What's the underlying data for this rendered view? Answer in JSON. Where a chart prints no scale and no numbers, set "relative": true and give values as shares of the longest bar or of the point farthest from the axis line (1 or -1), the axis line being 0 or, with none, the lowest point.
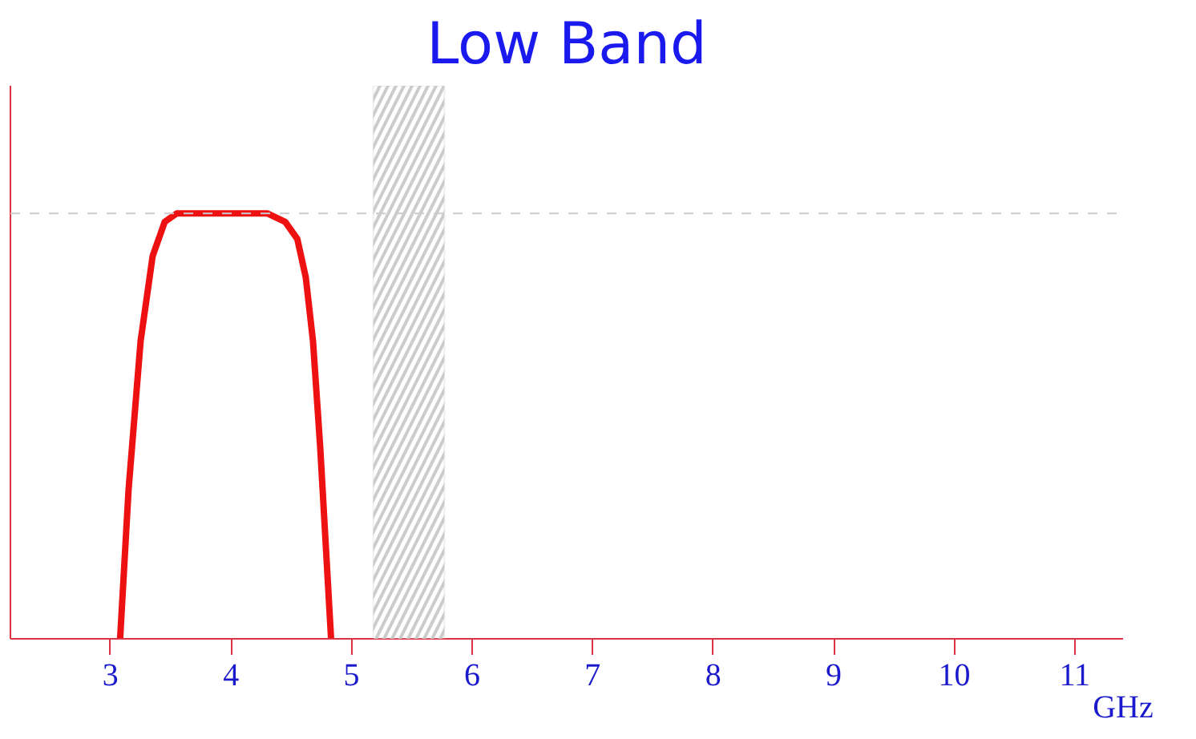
{
  "chart_data": {
    "type": "line",
    "title": "Low Band",
    "xlabel": "GHz",
    "relative": true,
    "xlim": [
      2.17,
      11.4
    ],
    "xticks": [
      3,
      4,
      5,
      6,
      7,
      8,
      9,
      10,
      11
    ],
    "series": [
      {
        "color": "#ee1111",
        "x": [
          3.08,
          3.15,
          3.25,
          3.35,
          3.45,
          3.55,
          3.7,
          4.0,
          4.3,
          4.45,
          4.55,
          4.62,
          4.68,
          4.74,
          4.79,
          4.83
        ],
        "values": [
          0,
          0.35,
          0.7,
          0.9,
          0.98,
          1,
          1,
          1,
          1,
          0.98,
          0.94,
          0.85,
          0.7,
          0.45,
          0.2,
          0
        ]
      }
    ],
    "ref_lines": [
      {
        "axis": "y",
        "value": 1,
        "color": "#cccccc",
        "line_style": "dashed"
      }
    ],
    "bands": [
      {
        "axis": "x",
        "from": 5.18,
        "to": 5.77,
        "color": "#cccccc"
      }
    ],
    "grid": false,
    "marker": "none",
    "line_style": "solid"
  }
}
